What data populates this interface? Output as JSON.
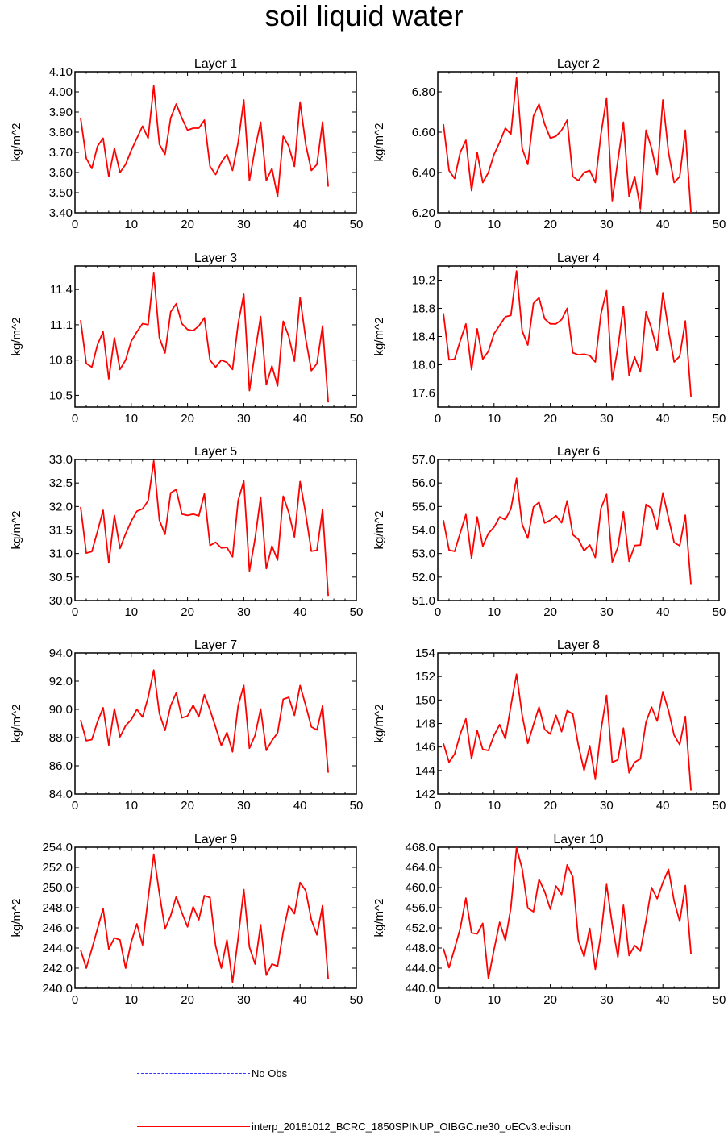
{
  "title": "soil liquid water",
  "colors": {
    "model": "#ff0000",
    "obs": "#3333ff",
    "axis": "#000000"
  },
  "legend": {
    "obs_label": "No Obs",
    "model_label": "interp_20181012_BCRC_1850SPINUP_OIBGC.ne30_oECv3.edison"
  },
  "chart_data": [
    {
      "type": "line",
      "title": "Layer 1",
      "ylabel": "kg/m^2",
      "xlim": [
        0,
        50
      ],
      "ylim": [
        3.4,
        4.1
      ],
      "xticks": [
        0,
        10,
        20,
        30,
        40,
        50
      ],
      "yticks": [
        3.4,
        3.5,
        3.6,
        3.7,
        3.8,
        3.9,
        4.0,
        4.1
      ],
      "ydecimals": 2,
      "series": [
        {
          "values": [
            3.87,
            3.67,
            3.62,
            3.73,
            3.77,
            3.58,
            3.72,
            3.6,
            3.64,
            3.71,
            3.77,
            3.83,
            3.77,
            4.03,
            3.74,
            3.69,
            3.87,
            3.94,
            3.87,
            3.81,
            3.82,
            3.82,
            3.86,
            3.63,
            3.59,
            3.65,
            3.69,
            3.61,
            3.75,
            3.96,
            3.56,
            3.72,
            3.85,
            3.56,
            3.62,
            3.48,
            3.78,
            3.73,
            3.63,
            3.95,
            3.74,
            3.61,
            3.64,
            3.85,
            3.53
          ]
        }
      ]
    },
    {
      "type": "line",
      "title": "Layer 2",
      "ylabel": "kg/m^2",
      "xlim": [
        0,
        50
      ],
      "ylim": [
        6.2,
        6.9
      ],
      "xticks": [
        0,
        10,
        20,
        30,
        40,
        50
      ],
      "yticks": [
        6.2,
        6.4,
        6.6,
        6.8
      ],
      "ydecimals": 2,
      "series": [
        {
          "values": [
            6.64,
            6.41,
            6.37,
            6.5,
            6.56,
            6.31,
            6.5,
            6.35,
            6.4,
            6.49,
            6.55,
            6.62,
            6.59,
            6.87,
            6.52,
            6.44,
            6.68,
            6.74,
            6.64,
            6.57,
            6.58,
            6.61,
            6.66,
            6.38,
            6.36,
            6.4,
            6.41,
            6.35,
            6.59,
            6.77,
            6.26,
            6.46,
            6.65,
            6.28,
            6.38,
            6.22,
            6.61,
            6.52,
            6.39,
            6.76,
            6.5,
            6.35,
            6.38,
            6.61,
            6.2
          ]
        }
      ]
    },
    {
      "type": "line",
      "title": "Layer 3",
      "ylabel": "kg/m^2",
      "xlim": [
        0,
        50
      ],
      "ylim": [
        10.4,
        11.6
      ],
      "xticks": [
        0,
        10,
        20,
        30,
        40,
        50
      ],
      "yticks": [
        10.5,
        10.8,
        11.1,
        11.4
      ],
      "ydecimals": 1,
      "series": [
        {
          "values": [
            11.14,
            10.77,
            10.74,
            10.93,
            11.04,
            10.64,
            10.99,
            10.72,
            10.8,
            10.96,
            11.04,
            11.11,
            11.1,
            11.54,
            10.99,
            10.86,
            11.21,
            11.28,
            11.11,
            11.06,
            11.05,
            11.09,
            11.16,
            10.8,
            10.74,
            10.8,
            10.78,
            10.72,
            11.11,
            11.36,
            10.54,
            10.87,
            11.17,
            10.59,
            10.75,
            10.58,
            11.13,
            11.0,
            10.79,
            11.33,
            10.98,
            10.71,
            10.77,
            11.09,
            10.44
          ]
        }
      ]
    },
    {
      "type": "line",
      "title": "Layer 4",
      "ylabel": "kg/m^2",
      "xlim": [
        0,
        50
      ],
      "ylim": [
        17.4,
        19.4
      ],
      "xticks": [
        0,
        10,
        20,
        30,
        40,
        50
      ],
      "yticks": [
        17.6,
        18.0,
        18.4,
        18.8,
        19.2
      ],
      "ydecimals": 1,
      "series": [
        {
          "values": [
            18.73,
            18.07,
            18.08,
            18.34,
            18.58,
            17.93,
            18.51,
            18.08,
            18.19,
            18.44,
            18.56,
            18.68,
            18.7,
            19.33,
            18.48,
            18.28,
            18.87,
            18.95,
            18.65,
            18.58,
            18.58,
            18.64,
            18.8,
            18.17,
            18.14,
            18.15,
            18.13,
            18.04,
            18.72,
            19.05,
            17.78,
            18.24,
            18.83,
            17.85,
            18.11,
            17.9,
            18.75,
            18.51,
            18.2,
            19.02,
            18.49,
            18.04,
            18.12,
            18.62,
            17.55
          ]
        }
      ]
    },
    {
      "type": "line",
      "title": "Layer 5",
      "ylabel": "kg/m^2",
      "xlim": [
        0,
        50
      ],
      "ylim": [
        30.0,
        33.0
      ],
      "xticks": [
        0,
        10,
        20,
        30,
        40,
        50
      ],
      "yticks": [
        30.0,
        30.5,
        31.0,
        31.5,
        32.0,
        32.5,
        33.0
      ],
      "ydecimals": 1,
      "series": [
        {
          "values": [
            31.99,
            31.01,
            31.04,
            31.47,
            31.92,
            30.8,
            31.81,
            31.11,
            31.42,
            31.69,
            31.9,
            31.95,
            32.12,
            32.97,
            31.71,
            31.41,
            32.29,
            32.36,
            31.84,
            31.81,
            31.84,
            31.8,
            32.27,
            31.17,
            31.24,
            31.12,
            31.13,
            30.93,
            32.13,
            32.54,
            30.63,
            31.32,
            32.2,
            30.68,
            31.16,
            30.86,
            32.22,
            31.87,
            31.35,
            32.53,
            31.84,
            31.05,
            31.07,
            31.93,
            30.1
          ]
        }
      ]
    },
    {
      "type": "line",
      "title": "Layer 6",
      "ylabel": "kg/m^2",
      "xlim": [
        0,
        50
      ],
      "ylim": [
        51.0,
        57.0
      ],
      "xticks": [
        0,
        10,
        20,
        30,
        40,
        50
      ],
      "yticks": [
        51.0,
        52.0,
        53.0,
        54.0,
        55.0,
        56.0,
        57.0
      ],
      "ydecimals": 1,
      "series": [
        {
          "values": [
            54.42,
            53.15,
            53.09,
            53.88,
            54.66,
            52.8,
            54.56,
            53.31,
            53.86,
            54.12,
            54.56,
            54.44,
            54.9,
            56.2,
            54.24,
            53.65,
            54.98,
            55.18,
            54.3,
            54.42,
            54.61,
            54.31,
            55.24,
            53.8,
            53.6,
            53.12,
            53.37,
            52.83,
            54.92,
            55.52,
            52.64,
            53.27,
            54.78,
            52.67,
            53.34,
            53.36,
            55.09,
            54.92,
            54.04,
            55.58,
            54.51,
            53.47,
            53.33,
            54.63,
            51.67
          ]
        }
      ]
    },
    {
      "type": "line",
      "title": "Layer 7",
      "ylabel": "kg/m^2",
      "xlim": [
        0,
        50
      ],
      "ylim": [
        84.0,
        94.0
      ],
      "xticks": [
        0,
        10,
        20,
        30,
        40,
        50
      ],
      "yticks": [
        84.0,
        86.0,
        88.0,
        90.0,
        92.0,
        94.0
      ],
      "ydecimals": 1,
      "series": [
        {
          "values": [
            89.25,
            87.78,
            87.86,
            89.12,
            90.12,
            87.47,
            90.04,
            88.05,
            88.84,
            89.27,
            90.0,
            89.46,
            90.84,
            92.78,
            89.71,
            88.51,
            90.27,
            91.17,
            89.4,
            89.53,
            90.3,
            89.47,
            91.04,
            89.96,
            88.73,
            87.44,
            88.37,
            86.99,
            90.27,
            91.7,
            87.24,
            88.16,
            90.03,
            87.09,
            87.79,
            88.33,
            90.72,
            90.86,
            89.57,
            91.69,
            90.28,
            88.76,
            88.54,
            90.24,
            85.51
          ]
        }
      ]
    },
    {
      "type": "line",
      "title": "Layer 8",
      "ylabel": "kg/m^2",
      "xlim": [
        0,
        50
      ],
      "ylim": [
        142,
        154
      ],
      "xticks": [
        0,
        10,
        20,
        30,
        40,
        50
      ],
      "yticks": [
        142,
        144,
        146,
        148,
        150,
        152,
        154
      ],
      "ydecimals": 0,
      "series": [
        {
          "values": [
            146.3,
            144.7,
            145.4,
            147.1,
            148.4,
            145.0,
            147.4,
            145.8,
            145.7,
            147.0,
            147.9,
            146.7,
            149.5,
            152.2,
            148.7,
            146.3,
            147.9,
            149.4,
            147.5,
            147.1,
            148.7,
            147.3,
            149.1,
            148.8,
            146.1,
            144.0,
            146.1,
            143.3,
            147.4,
            150.4,
            144.7,
            144.9,
            147.6,
            143.8,
            144.7,
            145.0,
            148.1,
            149.4,
            148.2,
            150.7,
            149.1,
            147.0,
            146.2,
            148.6,
            142.3
          ]
        }
      ]
    },
    {
      "type": "line",
      "title": "Layer 9",
      "ylabel": "kg/m^2",
      "xlim": [
        0,
        50
      ],
      "ylim": [
        240.0,
        254.0
      ],
      "xticks": [
        0,
        10,
        20,
        30,
        40,
        50
      ],
      "yticks": [
        240.0,
        242.0,
        244.0,
        246.0,
        248.0,
        250.0,
        252.0,
        254.0
      ],
      "ydecimals": 1,
      "series": [
        {
          "values": [
            243.8,
            242.0,
            243.9,
            245.9,
            247.9,
            243.9,
            245.0,
            244.8,
            242.0,
            244.6,
            246.4,
            244.3,
            248.9,
            253.3,
            249.4,
            245.9,
            247.2,
            249.1,
            247.5,
            246.1,
            248.1,
            246.8,
            249.2,
            249.0,
            244.2,
            242.0,
            244.8,
            240.6,
            245.0,
            249.8,
            244.1,
            242.4,
            246.3,
            241.3,
            242.4,
            242.2,
            245.6,
            248.2,
            247.4,
            250.5,
            249.7,
            246.8,
            245.3,
            248.2,
            240.9
          ]
        }
      ]
    },
    {
      "type": "line",
      "title": "Layer 10",
      "ylabel": "kg/m^2",
      "xlim": [
        0,
        50
      ],
      "ylim": [
        440.0,
        468.0
      ],
      "xticks": [
        0,
        10,
        20,
        30,
        40,
        50
      ],
      "yticks": [
        440.0,
        444.0,
        448.0,
        452.0,
        456.0,
        460.0,
        464.0,
        468.0
      ],
      "ydecimals": 1,
      "series": [
        {
          "values": [
            447.9,
            444.1,
            447.9,
            451.9,
            457.9,
            451.0,
            450.8,
            452.9,
            441.9,
            447.7,
            453.1,
            449.5,
            456.0,
            467.9,
            463.7,
            455.9,
            455.2,
            461.6,
            459.2,
            455.7,
            460.3,
            458.6,
            464.5,
            462.1,
            449.5,
            446.3,
            451.9,
            443.8,
            450.7,
            460.6,
            452.7,
            446.2,
            456.5,
            446.5,
            448.5,
            447.4,
            453.4,
            460.0,
            457.8,
            461.0,
            463.6,
            457.3,
            453.3,
            460.4,
            446.8
          ]
        }
      ]
    }
  ]
}
